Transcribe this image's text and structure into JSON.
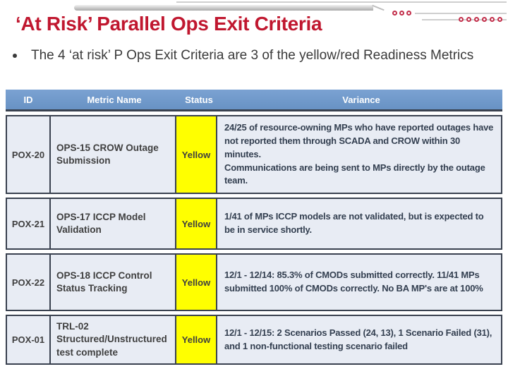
{
  "slide": {
    "title": "‘At Risk’ Parallel Ops Exit Criteria",
    "bullet": "The 4 ‘at risk’ P Ops Exit Criteria are 3 of the yellow/red Readiness Metrics"
  },
  "table": {
    "columns": [
      "ID",
      "Metric Name",
      "Status",
      "Variance"
    ],
    "rows": [
      {
        "id": "POX-20",
        "metric": "OPS-15 CROW Outage Submission",
        "status": "Yellow",
        "variance": "24/25 of resource-owning MPs who have reported outages have not reported them through SCADA and CROW within 30 minutes.\nCommunications are being sent to MPs directly by the outage team."
      },
      {
        "id": "POX-21",
        "metric": "OPS-17 ICCP Model Validation",
        "status": "Yellow",
        "variance": "1/41 of MPs ICCP models are not validated, but is expected to be in service shortly."
      },
      {
        "id": "POX-22",
        "metric": "OPS-18 ICCP Control Status Tracking",
        "status": "Yellow",
        "variance": "12/1 - 12/14: 85.3% of CMODs submitted correctly. 11/41 MPs submitted 100% of CMODs correctly. No BA MP's are at 100%"
      },
      {
        "id": "POX-01",
        "metric": "TRL-02 Structured/Unstructured test complete",
        "status": "Yellow",
        "variance": "12/1 - 12/15: 2 Scenarios Passed (24, 13), 1 Scenario Failed (31), and 1 non-functional testing scenario failed"
      }
    ]
  },
  "colors": {
    "title_red": "#c0172f",
    "header_blue": "#6f98ca",
    "row_bg": "#e8ecf4",
    "border_dark": "#39414f",
    "status_yellow": "#ffff00",
    "variance_text": "#333f50"
  }
}
